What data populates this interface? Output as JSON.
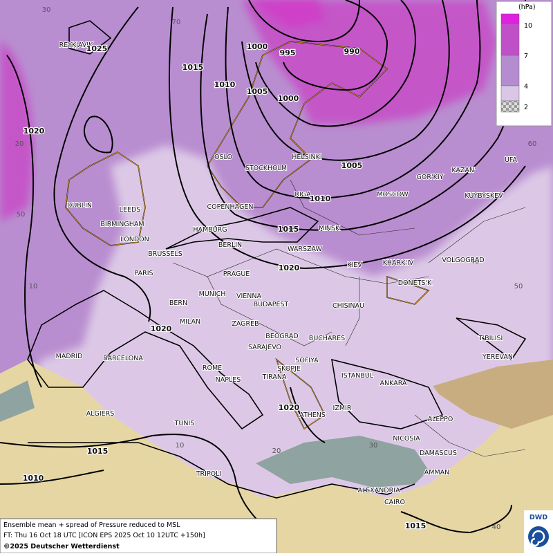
{
  "legend": {
    "unit": "(hPa)",
    "levels": [
      "10",
      "7",
      "4",
      "2"
    ]
  },
  "cities": [
    "REYKJAVIK",
    "DUBLIN",
    "LEEDS",
    "BIRMINGHAM",
    "LONDON",
    "BRUSSELS",
    "PARIS",
    "OSLO",
    "STOCKHOLM",
    "HELSINKI",
    "COPENHAGEN",
    "HAMBURG",
    "BERLIN",
    "RIGA",
    "MINSK",
    "WARSZAW",
    "MOSCOW",
    "GOR'KIY",
    "KAZAN'",
    "UFA",
    "KUYBYSKEV",
    "KIEV",
    "KHARK'IV",
    "VOLGOGRAD",
    "DONETS'K",
    "PRAGUE",
    "MUNICH",
    "VIENNA",
    "BERN",
    "MILAN",
    "BUDAPEST",
    "ZAGREB",
    "CHISINAU",
    "BEOGRAD",
    "BUCHARES",
    "SARAJEVO",
    "SOFIYA",
    "SKOPJE",
    "TIRANA",
    "ISTANBUL",
    "ANKARA",
    "T'BILISI",
    "YEREVAN",
    "MADRID",
    "BARCELONA",
    "ROME",
    "NAPLES",
    "ALGIERS",
    "TUNIS",
    "ATHENS",
    "IZMIR",
    "ALEPPO",
    "NICOSIA",
    "DAMASCUS",
    "AMMAN",
    "TRIPOLI",
    "ALEXANDRIA",
    "CAIRO"
  ],
  "isobar_labels": [
    "1025",
    "995",
    "990",
    "1000",
    "1015",
    "1010",
    "1005",
    "1000",
    "1020",
    "1005",
    "1010",
    "1015",
    "1020",
    "1020",
    "1020",
    "1015",
    "1010",
    "1015"
  ],
  "graticule_labels": [
    "30",
    "70",
    "20",
    "50",
    "10",
    "60",
    "40",
    "50",
    "30",
    "20",
    "10",
    "40"
  ],
  "footer": {
    "line1": "Ensemble mean + spread of Pressure reduced to MSL",
    "line2": "FT: Thu 16 Oct 18 UTC [ICON EPS 2025 Oct 10 12UTC +150h]",
    "line3": "©2025 Deutscher Wetterdienst"
  },
  "logo": "DWD"
}
